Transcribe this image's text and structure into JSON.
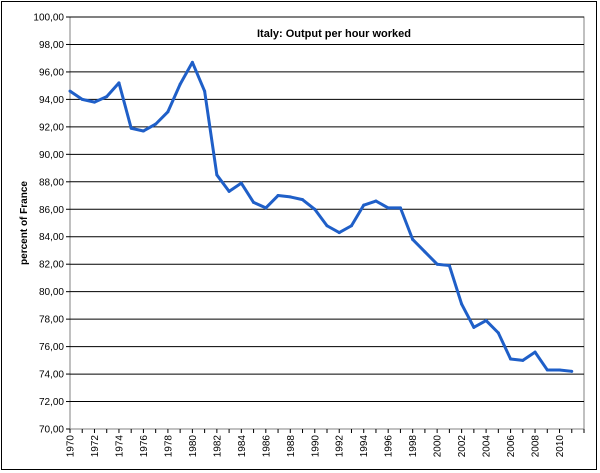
{
  "chart_data": {
    "type": "line",
    "title": "Italy: Output per hour worked",
    "xlabel": "",
    "ylabel": "percent of France",
    "ylim": [
      70,
      100
    ],
    "xlim": [
      1970,
      2012
    ],
    "grid": true,
    "legend": "none",
    "line_color": "#1f5fc8",
    "y_ticks": [
      "70,00",
      "72,00",
      "74,00",
      "76,00",
      "78,00",
      "80,00",
      "82,00",
      "84,00",
      "86,00",
      "88,00",
      "90,00",
      "92,00",
      "94,00",
      "96,00",
      "98,00",
      "100,00"
    ],
    "x_ticks": [
      "1970",
      "1972",
      "1974",
      "1976",
      "1978",
      "1980",
      "1982",
      "1984",
      "1986",
      "1988",
      "1990",
      "1992",
      "1994",
      "1996",
      "1998",
      "2000",
      "2002",
      "2004",
      "2006",
      "2008",
      "2010"
    ],
    "series": [
      {
        "x": [
          1970,
          1971,
          1972,
          1973,
          1974,
          1975,
          1976,
          1977,
          1978,
          1979,
          1980,
          1981,
          1982,
          1983,
          1984,
          1985,
          1986,
          1987,
          1988,
          1989,
          1990,
          1991,
          1992,
          1993,
          1994,
          1995,
          1996,
          1997,
          1998,
          1999,
          2000,
          2001,
          2002,
          2003,
          2004,
          2005,
          2006,
          2007,
          2008,
          2009,
          2010,
          2011
        ],
        "y": [
          94.6,
          94.0,
          93.8,
          94.2,
          95.2,
          91.9,
          91.7,
          92.2,
          93.1,
          95.1,
          96.7,
          94.6,
          88.5,
          87.3,
          87.9,
          86.5,
          86.1,
          87.0,
          86.9,
          86.7,
          86.0,
          84.8,
          84.3,
          84.8,
          86.3,
          86.6,
          86.1,
          86.1,
          83.8,
          82.9,
          82.0,
          81.9,
          79.1,
          77.4,
          77.9,
          77.0,
          75.1,
          75.0,
          75.6,
          74.3,
          74.3,
          74.2
        ]
      }
    ]
  }
}
